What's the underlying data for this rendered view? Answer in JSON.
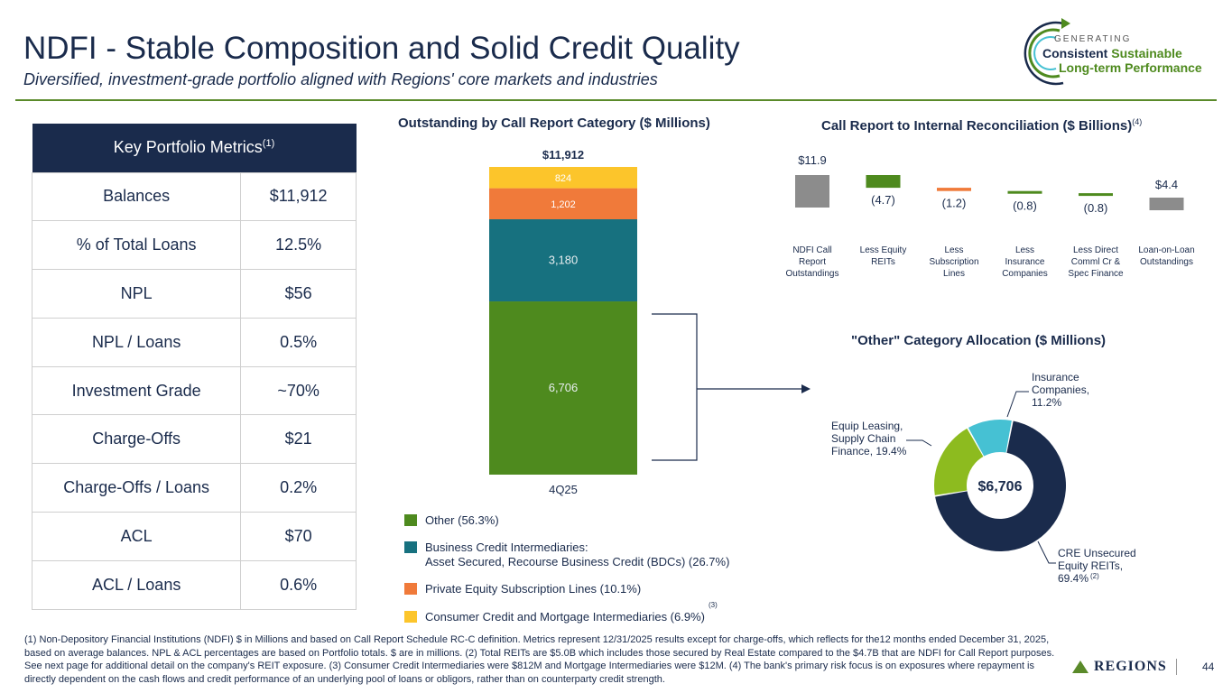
{
  "header": {
    "title": "NDFI - Stable Composition and Solid Credit Quality",
    "subtitle": "Diversified, investment-grade portfolio aligned with Regions' core markets and industries",
    "logo_top": "GENERATING",
    "logo_line1a": "Consistent",
    "logo_line1b": "Sustainable",
    "logo_line2": "Long-term Performance"
  },
  "metrics": {
    "header": "Key Portfolio Metrics",
    "header_sup": "(1)",
    "rows": [
      {
        "label": "Balances",
        "value": "$11,912"
      },
      {
        "label": "% of Total Loans",
        "value": "12.5%"
      },
      {
        "label": "NPL",
        "value": "$56"
      },
      {
        "label": "NPL / Loans",
        "value": "0.5%"
      },
      {
        "label": "Investment Grade",
        "value": "~70%"
      },
      {
        "label": "Charge-Offs",
        "value": "$21"
      },
      {
        "label": "Charge-Offs / Loans",
        "value": "0.2%"
      },
      {
        "label": "ACL",
        "value": "$70"
      },
      {
        "label": "ACL / Loans",
        "value": "0.6%"
      }
    ]
  },
  "colors": {
    "navy": "#1a2b4c",
    "green": "#4e8a1e",
    "teal": "#17717f",
    "orange": "#f07a3a",
    "yellow": "#fcc52b",
    "gray": "#8c8c8c",
    "lightgreen": "#8dbb1f",
    "cyan": "#46c1d3"
  },
  "chart_data": [
    {
      "type": "bar",
      "title": "Outstanding by Call Report Category ($ Millions)",
      "categories": [
        "4Q25"
      ],
      "total_label": "$11,912",
      "series": [
        {
          "name": "Other (56.3%)",
          "values": [
            6706
          ],
          "label": "6,706",
          "color": "#4e8a1e"
        },
        {
          "name": "Business Credit Intermediaries:",
          "name2": "Asset Secured, Recourse Business Credit (BDCs) (26.7%)",
          "values": [
            3180
          ],
          "label": "3,180",
          "color": "#17717f"
        },
        {
          "name": "Private Equity Subscription Lines (10.1%)",
          "values": [
            1202
          ],
          "label": "1,202",
          "color": "#f07a3a"
        },
        {
          "name": "Consumer Credit and Mortgage Intermediaries (6.9%)",
          "values": [
            824
          ],
          "label": "824",
          "color": "#fcc52b"
        }
      ],
      "legend_sup": "(3)",
      "ylim": [
        0,
        11912
      ]
    },
    {
      "type": "bar",
      "subtype": "waterfall",
      "title": "Call Report to Internal Reconciliation ($ Billions)",
      "title_sup": "(4)",
      "categories": [
        [
          "NDFI Call",
          "Report",
          "Outstandings"
        ],
        [
          "Less Equity",
          "REITs"
        ],
        [
          "Less",
          "Subscription",
          "Lines"
        ],
        [
          "Less",
          "Insurance",
          "Companies"
        ],
        [
          "Less Direct",
          "Comml Cr &",
          "Spec Finance"
        ],
        [
          "Loan-on-Loan",
          "Outstandings"
        ]
      ],
      "values": [
        11.9,
        -4.7,
        -1.2,
        -0.8,
        -0.8,
        4.4
      ],
      "labels": [
        "$11.9",
        "(4.7)",
        "(1.2)",
        "(0.8)",
        "(0.8)",
        "$4.4"
      ],
      "colors": [
        "#8c8c8c",
        "#4e8a1e",
        "#f07a3a",
        "#4e8a1e",
        "#4e8a1e",
        "#8c8c8c"
      ]
    },
    {
      "type": "pie",
      "subtype": "donut",
      "title": "\"Other\" Category Allocation ($ Millions)",
      "center_label": "$6,706",
      "slices": [
        {
          "name": "CRE Unsecured Equity REITs,",
          "value": 69.4,
          "label_lines": [
            "CRE Unsecured",
            "Equity REITs,",
            "69.4%"
          ],
          "sup": "(2)",
          "color": "#1a2b4c"
        },
        {
          "name": "Equip Leasing, Supply Chain Finance",
          "value": 19.4,
          "label_lines": [
            "Equip Leasing,",
            "Supply Chain",
            "Finance, 19.4%"
          ],
          "color": "#8dbb1f"
        },
        {
          "name": "Insurance Companies",
          "value": 11.2,
          "label_lines": [
            "Insurance",
            "Companies,",
            "11.2%"
          ],
          "color": "#46c1d3"
        }
      ]
    }
  ],
  "footnote": "(1) Non-Depository Financial Institutions (NDFI) $ in Millions and based on Call Report Schedule RC-C definition. Metrics represent 12/31/2025 results except for charge-offs, which reflects for the12 months ended December 31, 2025, based on average balances. NPL & ACL percentages are based on Portfolio totals. $ are in millions. (2) Total REITs are $5.0B which includes those secured by Real Estate compared to the $4.7B that are NDFI for Call Report purposes. See next page for additional detail on the company's REIT exposure. (3) Consumer Credit Intermediaries were $812M and Mortgage Intermediaries were $12M. (4) The bank's primary risk focus is on exposures where repayment is directly dependent on the cash flows and credit performance of an underlying pool of loans or obligors, rather than on counterparty credit strength.",
  "brand": "REGIONS",
  "page_number": "44"
}
